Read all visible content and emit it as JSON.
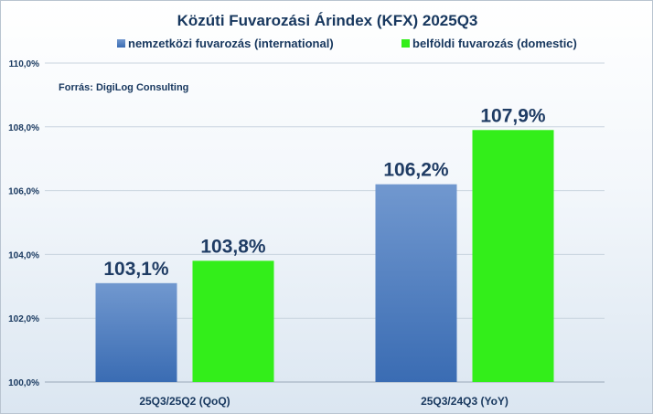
{
  "chart_data": {
    "type": "bar",
    "title": "Közúti  Fuvarozási  Árindex  (KFX)  2025Q3",
    "note": "Forrás: DigiLog  Consulting",
    "categories": [
      "25Q3/25Q2 (QoQ)",
      "25Q3/24Q3 (YoY)"
    ],
    "series": [
      {
        "name": "nemzetközi fuvarozás (international)",
        "values": [
          103.1,
          106.2
        ],
        "labels": [
          "103,1%",
          "106,2%"
        ],
        "color": "#4a7fc1"
      },
      {
        "name": "belföldi fuvarozás (domestic)",
        "values": [
          103.8,
          107.9
        ],
        "labels": [
          "103,8%",
          "107,9%"
        ],
        "color": "#33ee1a"
      }
    ],
    "ylim": [
      100,
      110
    ],
    "yticks": [
      100,
      102,
      104,
      106,
      108,
      110
    ],
    "ytick_labels": [
      "100,0%",
      "102,0%",
      "104,0%",
      "106,0%",
      "108,0%",
      "110,0%"
    ],
    "grid": true,
    "legend": "top"
  }
}
